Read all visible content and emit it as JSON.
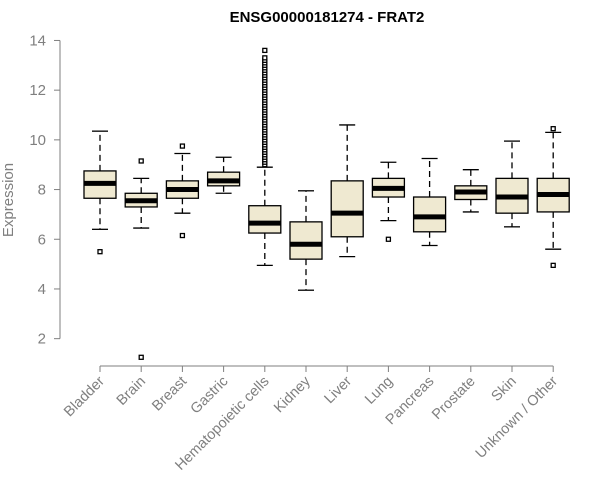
{
  "chart_data": {
    "type": "boxplot",
    "title": "ENSG00000181274 - FRAT2",
    "xlabel": "",
    "ylabel": "Expression",
    "ylim": [
      0.9,
      14.3
    ],
    "yticks": [
      2,
      4,
      6,
      8,
      10,
      12,
      14
    ],
    "categories": [
      "Bladder",
      "Brain",
      "Breast",
      "Gastric",
      "Hematopoietic cells",
      "Kidney",
      "Liver",
      "Lung",
      "Pancreas",
      "Prostate",
      "Skin",
      "Unknown / Other"
    ],
    "box_color": "#efe9d1",
    "boxes": [
      {
        "min": 6.4,
        "q1": 7.65,
        "median": 8.25,
        "q3": 8.75,
        "max": 10.35,
        "outliers": [
          5.5
        ]
      },
      {
        "min": 6.45,
        "q1": 7.3,
        "median": 7.55,
        "q3": 7.85,
        "max": 8.45,
        "outliers": [
          9.15,
          1.25
        ]
      },
      {
        "min": 7.05,
        "q1": 7.65,
        "median": 8.0,
        "q3": 8.35,
        "max": 9.45,
        "outliers": [
          9.75,
          6.15
        ]
      },
      {
        "min": 7.85,
        "q1": 8.15,
        "median": 8.35,
        "q3": 8.7,
        "max": 9.3,
        "outliers": []
      },
      {
        "min": 4.95,
        "q1": 6.25,
        "median": 6.65,
        "q3": 7.35,
        "max": 8.9,
        "outliers": [
          9.0,
          9.1,
          9.2,
          9.3,
          9.4,
          9.5,
          9.6,
          9.7,
          9.8,
          9.9,
          10.0,
          10.1,
          10.2,
          10.3,
          10.4,
          10.5,
          10.6,
          10.7,
          10.8,
          10.9,
          11.0,
          11.1,
          11.2,
          11.3,
          11.4,
          11.5,
          11.6,
          11.7,
          11.8,
          11.9,
          12.0,
          12.1,
          12.2,
          12.3,
          12.4,
          12.5,
          12.6,
          12.7,
          12.8,
          12.9,
          13.0,
          13.1,
          13.2,
          13.3,
          13.6
        ]
      },
      {
        "min": 3.95,
        "q1": 5.2,
        "median": 5.8,
        "q3": 6.7,
        "max": 7.95,
        "outliers": []
      },
      {
        "min": 5.3,
        "q1": 6.1,
        "median": 7.05,
        "q3": 8.35,
        "max": 10.6,
        "outliers": []
      },
      {
        "min": 6.75,
        "q1": 7.7,
        "median": 8.05,
        "q3": 8.45,
        "max": 9.1,
        "outliers": [
          6.0
        ]
      },
      {
        "min": 5.75,
        "q1": 6.3,
        "median": 6.9,
        "q3": 7.7,
        "max": 9.25,
        "outliers": []
      },
      {
        "min": 7.1,
        "q1": 7.6,
        "median": 7.9,
        "q3": 8.15,
        "max": 8.8,
        "outliers": []
      },
      {
        "min": 6.5,
        "q1": 7.05,
        "median": 7.7,
        "q3": 8.45,
        "max": 9.95,
        "outliers": []
      },
      {
        "min": 5.6,
        "q1": 7.1,
        "median": 7.8,
        "q3": 8.45,
        "max": 10.3,
        "outliers": [
          10.45,
          4.95
        ]
      }
    ]
  }
}
